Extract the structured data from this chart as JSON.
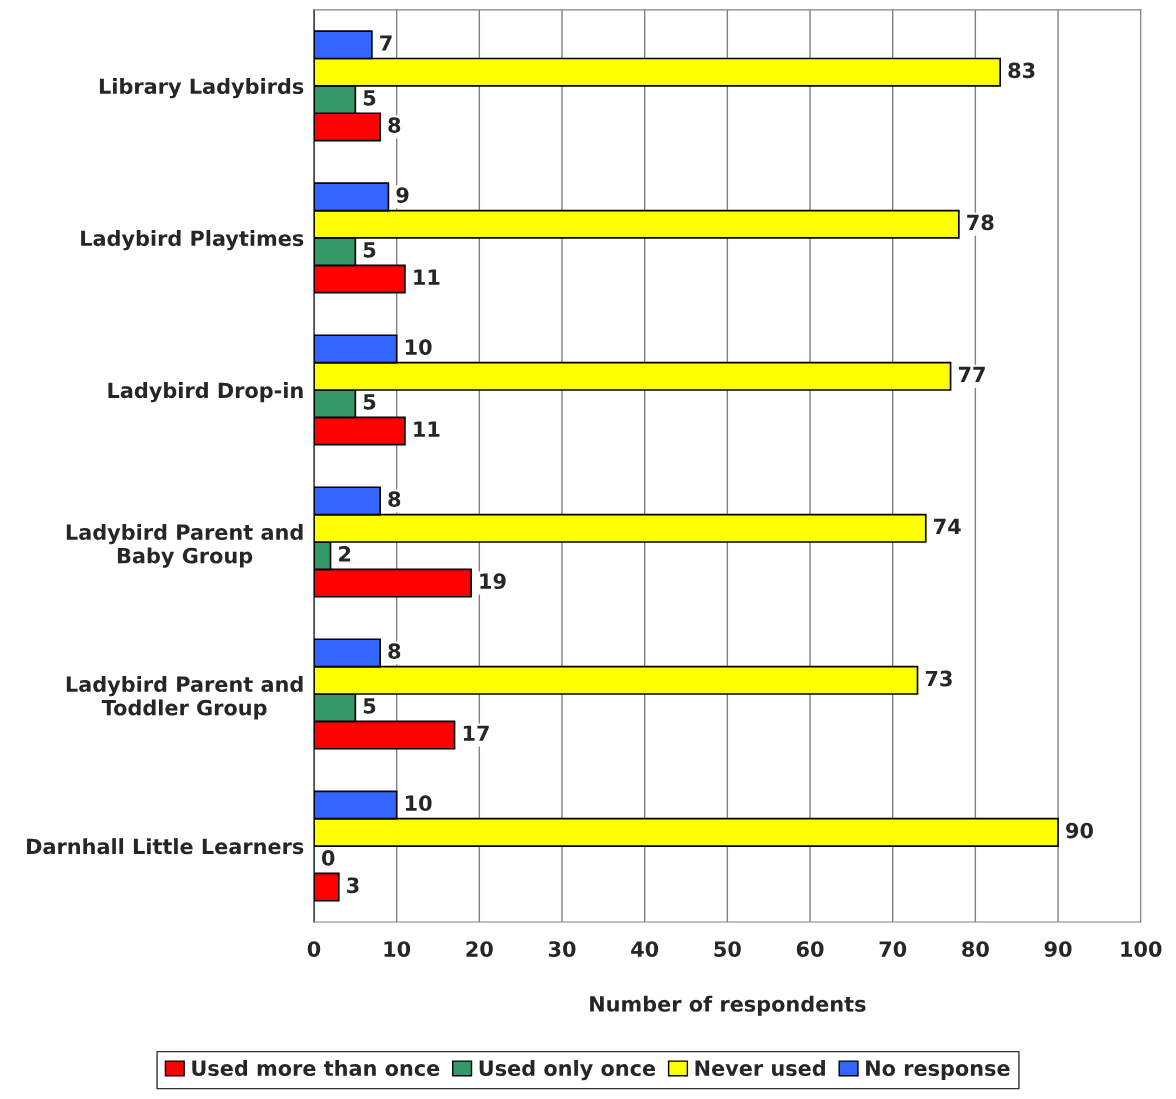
{
  "chart_data": {
    "type": "bar",
    "orientation": "horizontal",
    "xlabel": "Number of respondents",
    "categories": [
      "Library Ladybirds",
      "Ladybird Playtimes",
      "Ladybird Drop-in",
      "Ladybird Parent and\nBaby Group",
      "Ladybird Parent and\nToddler Group",
      "Darnhall Little Learners"
    ],
    "series": [
      {
        "name": "Used more than once",
        "color": "#ff0000",
        "values": [
          8,
          11,
          11,
          19,
          17,
          3
        ]
      },
      {
        "name": "Used only once",
        "color": "#339966",
        "values": [
          5,
          5,
          5,
          2,
          5,
          0
        ]
      },
      {
        "name": "Never used",
        "color": "#ffff00",
        "values": [
          83,
          78,
          77,
          74,
          73,
          90
        ]
      },
      {
        "name": "No response",
        "color": "#3366ff",
        "values": [
          7,
          9,
          10,
          8,
          8,
          10
        ]
      }
    ],
    "xlim": [
      0,
      100
    ],
    "xticks": [
      0,
      10,
      20,
      30,
      40,
      50,
      60,
      70,
      80,
      90,
      100
    ],
    "grid": "x",
    "legend": "bottom",
    "data_labels": true
  }
}
